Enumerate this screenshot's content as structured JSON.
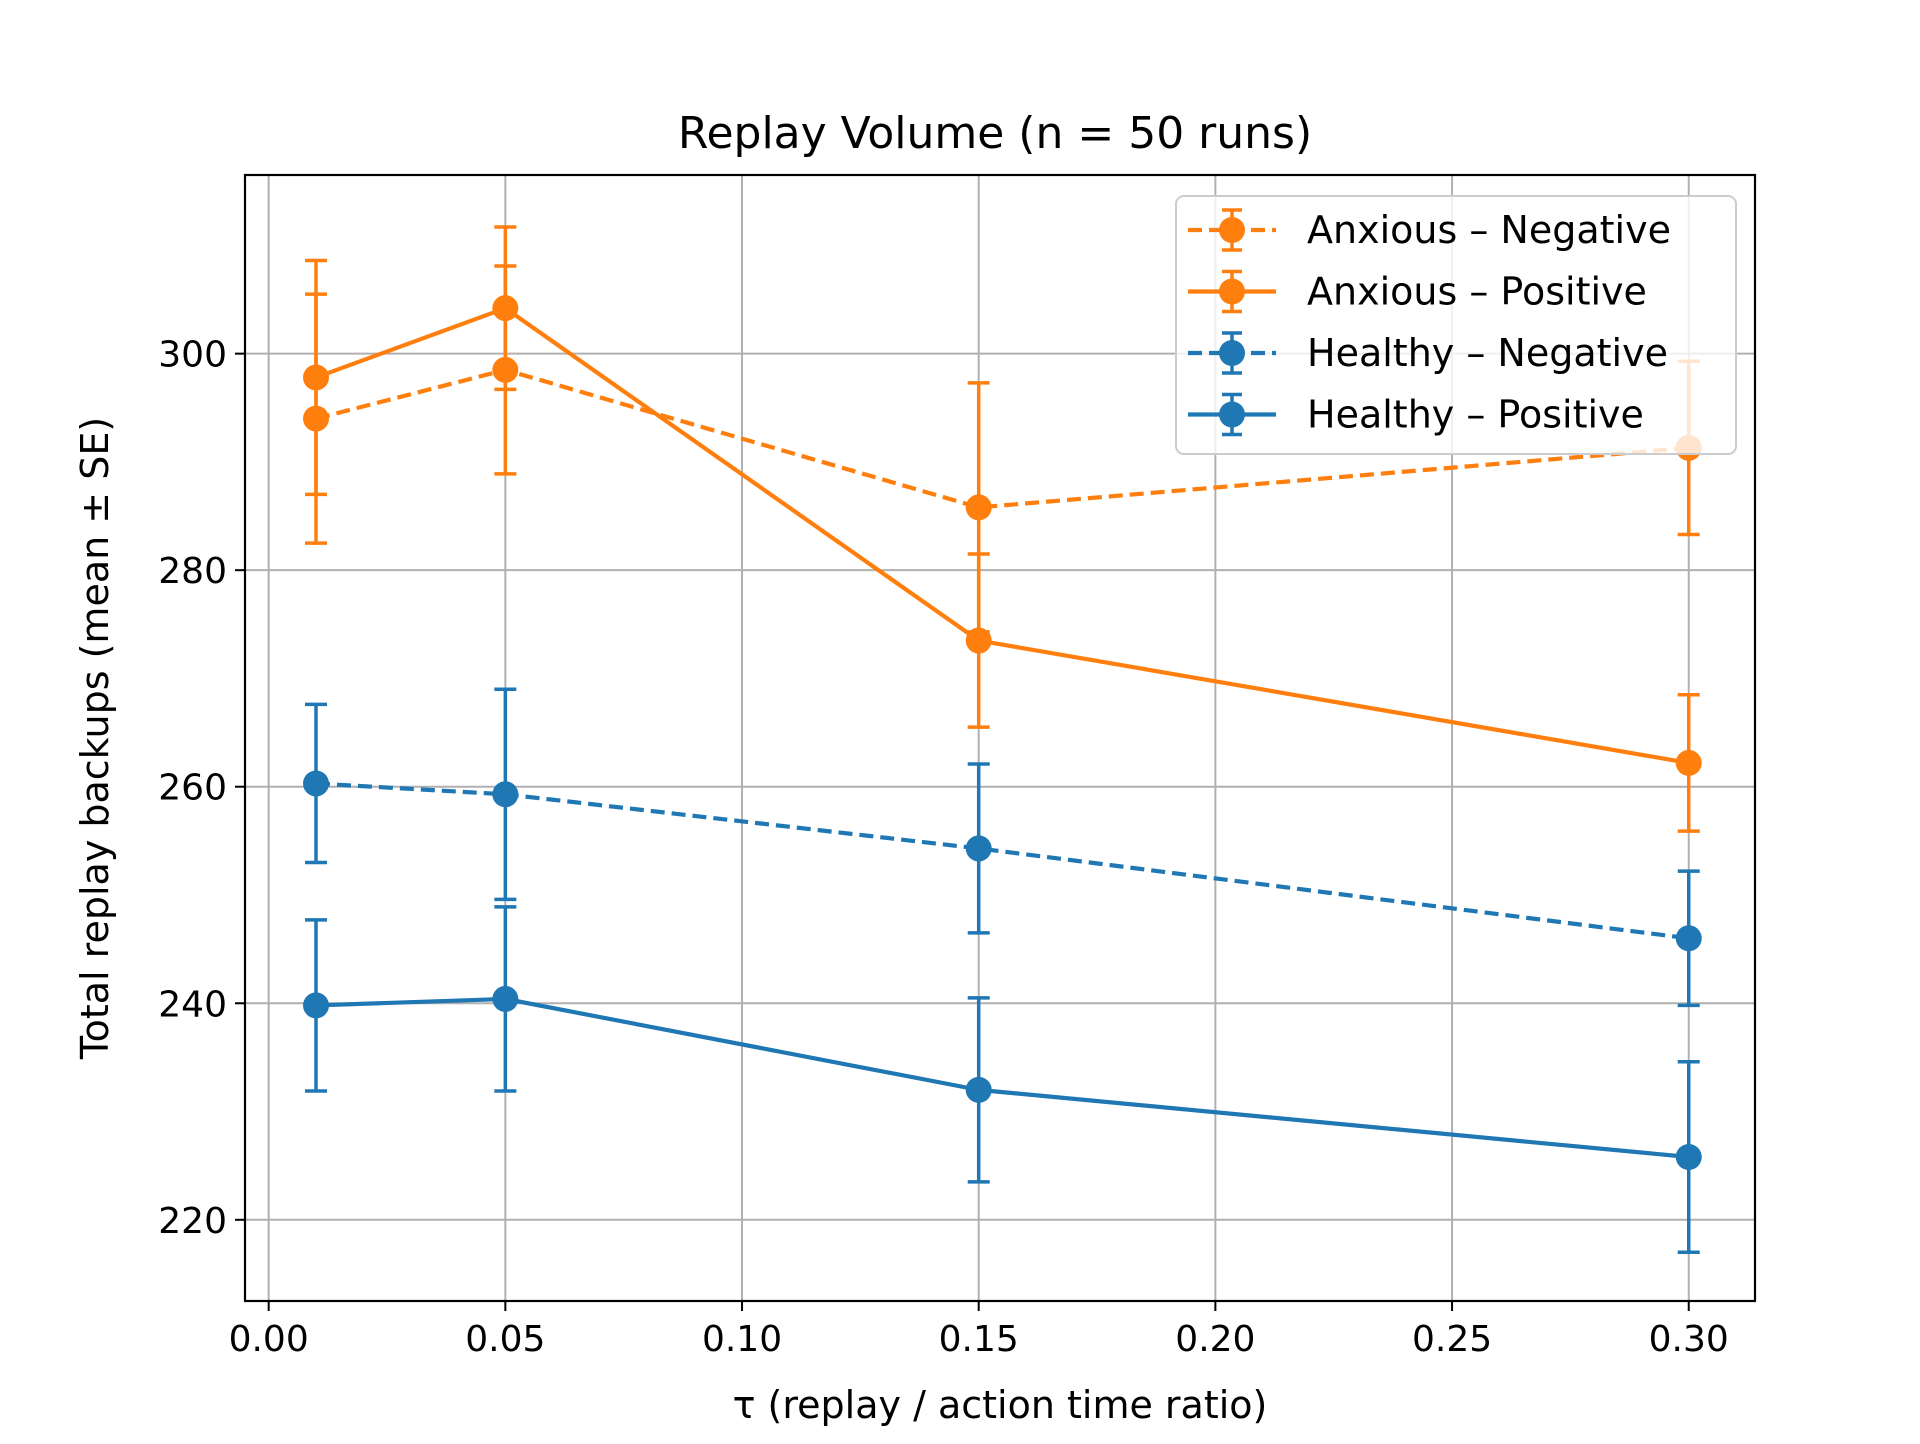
{
  "chart_data": {
    "type": "line",
    "title": "Replay Volume  (n = 50 runs)",
    "xlabel": "τ  (replay / action time ratio)",
    "ylabel": "Total replay backups   (mean ± SE)",
    "x": [
      0.01,
      0.05,
      0.15,
      0.3
    ],
    "xlim": [
      -0.005,
      0.314
    ],
    "ylim": [
      212.5,
      316.5
    ],
    "x_ticks": [
      0.0,
      0.05,
      0.1,
      0.15,
      0.2,
      0.25,
      0.3
    ],
    "x_tick_labels": [
      "0.00",
      "0.05",
      "0.10",
      "0.15",
      "0.20",
      "0.25",
      "0.30"
    ],
    "y_ticks": [
      220,
      240,
      260,
      280,
      300
    ],
    "y_tick_labels": [
      "220",
      "240",
      "260",
      "280",
      "300"
    ],
    "grid": true,
    "legend_position": "top-right",
    "series": [
      {
        "name": "Anxious – Negative",
        "color": "#ff7f0e",
        "line_style": "dashed",
        "values": [
          294.0,
          298.5,
          285.8,
          291.3
        ],
        "errors": [
          11.5,
          9.6,
          11.5,
          8.0
        ]
      },
      {
        "name": "Anxious – Positive",
        "color": "#ff7f0e",
        "line_style": "solid",
        "values": [
          297.8,
          304.2,
          273.5,
          262.2
        ],
        "errors": [
          10.8,
          7.5,
          8.0,
          6.3
        ]
      },
      {
        "name": "Healthy – Negative",
        "color": "#1f77b4",
        "line_style": "dashed",
        "values": [
          260.3,
          259.3,
          254.3,
          246.0
        ],
        "errors": [
          7.3,
          9.7,
          7.8,
          6.2
        ]
      },
      {
        "name": "Healthy – Positive",
        "color": "#1f77b4",
        "line_style": "solid",
        "values": [
          239.8,
          240.4,
          232.0,
          225.8
        ],
        "errors": [
          7.9,
          8.5,
          8.5,
          8.8
        ]
      }
    ]
  }
}
